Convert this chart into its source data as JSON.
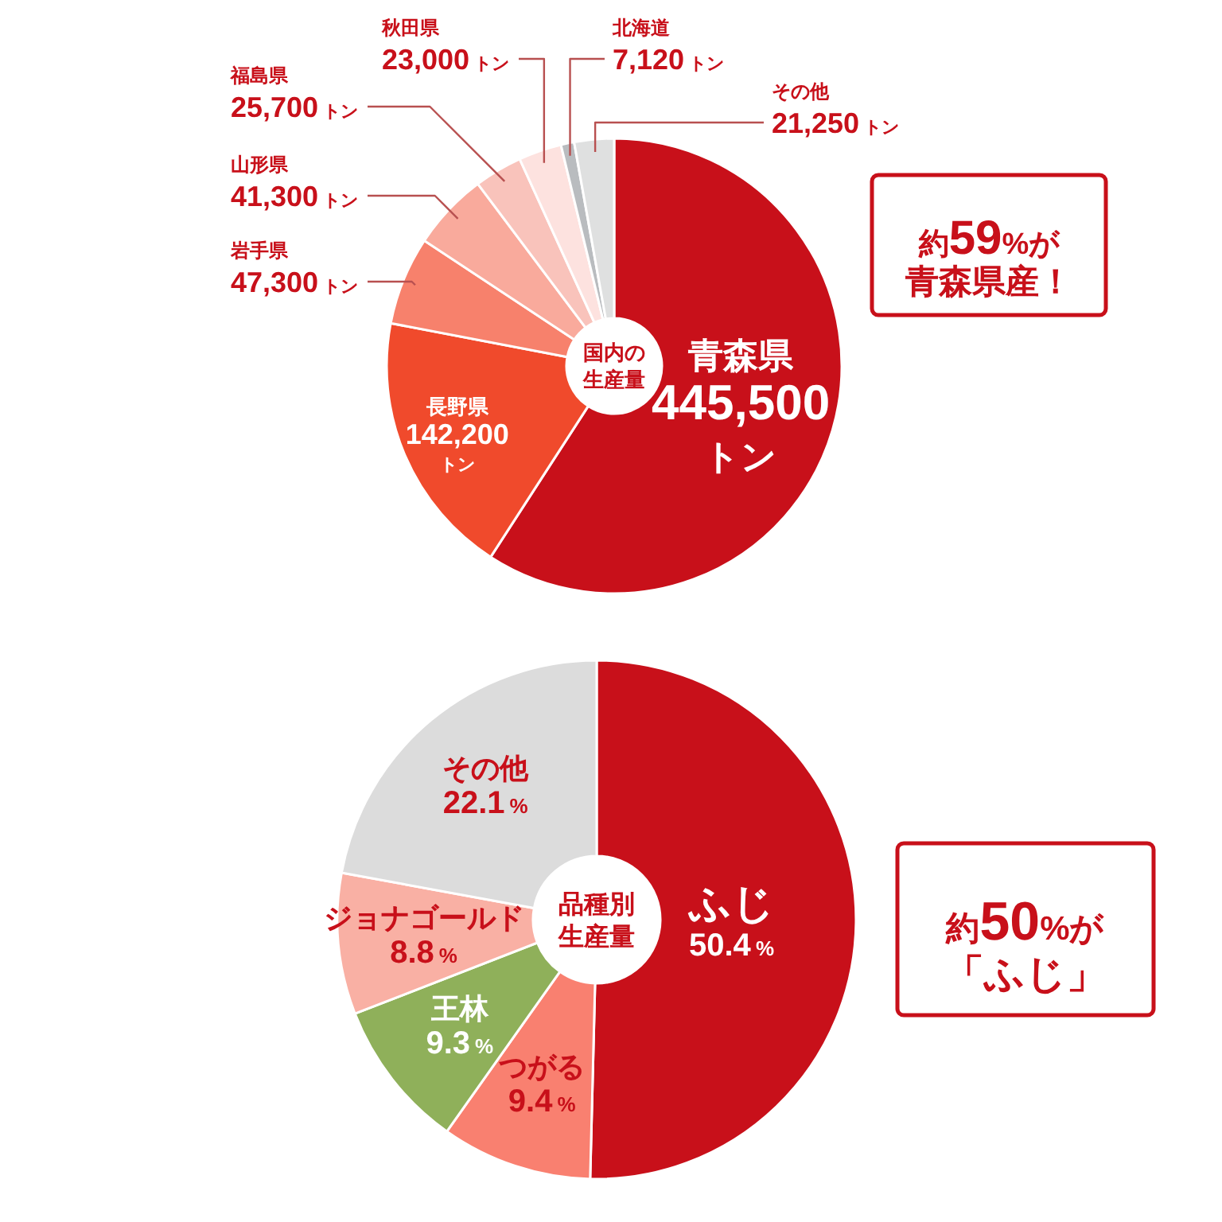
{
  "chart_data": [
    {
      "type": "donut",
      "title": "国内の生産量",
      "categories": [
        "青森県",
        "長野県",
        "岩手県",
        "山形県",
        "福島県",
        "秋田県",
        "北海道",
        "その他"
      ],
      "values": [
        445500,
        142200,
        47300,
        41300,
        25700,
        23000,
        7120,
        21250
      ],
      "colors": [
        "#c8101a",
        "#f04a2c",
        "#f7816c",
        "#f9aa9c",
        "#f9c3bb",
        "#fde2df",
        "#b9bcbf",
        "#dfe0e0"
      ],
      "value_labels": [
        "445,500トン",
        "142,200トン",
        "47,300トン",
        "41,300トン",
        "25,700トン",
        "23,000トン",
        "7,120トン",
        "21,250トン"
      ],
      "annotations": [
        "約59%が青森県産！"
      ]
    },
    {
      "type": "donut",
      "title": "品種別生産量",
      "categories": [
        "ふじ",
        "つがる",
        "王林",
        "ジョナゴールド",
        "その他"
      ],
      "values": [
        50.4,
        9.4,
        9.3,
        8.8,
        22.1
      ],
      "colors": [
        "#c8101a",
        "#f98070",
        "#8fb05a",
        "#f9b0a4",
        "#dcdcdc"
      ],
      "value_labels": [
        "50.4%",
        "9.4%",
        "9.3%",
        "8.8%",
        "22.1%"
      ],
      "annotations": [
        "約50%が「ふじ」"
      ]
    }
  ]
}
